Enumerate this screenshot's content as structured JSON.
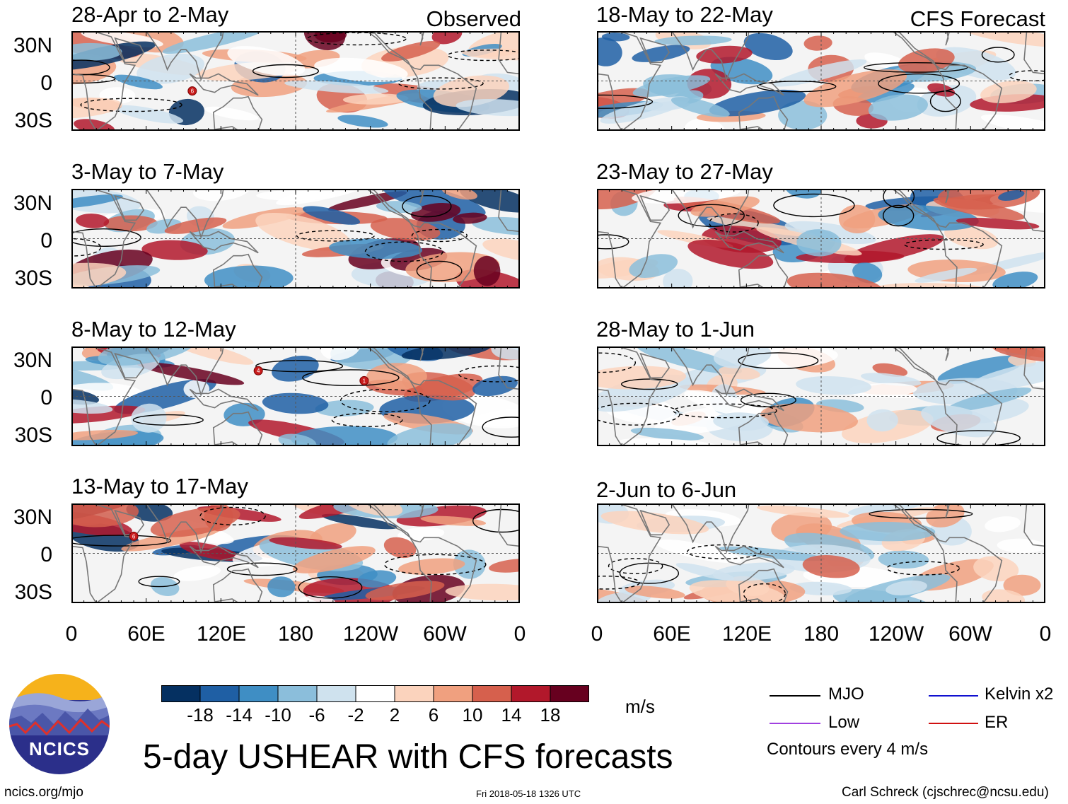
{
  "figure": {
    "title": "5-day USHEAR with CFS forecasts",
    "source_url": "ncics.org/mjo",
    "timestamp": "Fri 2018-05-18 1326 UTC",
    "author": "Carl Schreck (cjschrec@ncsu.edu)",
    "logo_text": "NCICS"
  },
  "columns": {
    "observed_label": "Observed",
    "forecast_label": "CFS Forecast"
  },
  "panels": {
    "observed": [
      {
        "period": "28-Apr to 2-May"
      },
      {
        "period": "3-May to 7-May"
      },
      {
        "period": "8-May to 12-May"
      },
      {
        "period": "13-May to 17-May"
      }
    ],
    "forecast": [
      {
        "period": "18-May to 22-May"
      },
      {
        "period": "23-May to 27-May"
      },
      {
        "period": "28-May to 1-Jun"
      },
      {
        "period": "2-Jun to 6-Jun"
      }
    ]
  },
  "axes": {
    "lat_ticks": [
      "30N",
      "0",
      "30S"
    ],
    "lon_ticks": [
      "0",
      "60E",
      "120E",
      "180",
      "120W",
      "60W",
      "0"
    ]
  },
  "colorbar": {
    "units": "m/s",
    "tick_labels": [
      "-18",
      "-14",
      "-10",
      "-6",
      "-2",
      "2",
      "6",
      "10",
      "14",
      "18"
    ],
    "colors": [
      "#053061",
      "#1f5fa4",
      "#3f8ec4",
      "#8bbedb",
      "#cfe2ee",
      "#ffffff",
      "#fbd3bd",
      "#f0a07f",
      "#d6604d",
      "#b2182b",
      "#67001f"
    ]
  },
  "legend": {
    "items": [
      {
        "label": "MJO",
        "color": "#000000"
      },
      {
        "label": "Kelvin x2",
        "color": "#1010d0"
      },
      {
        "label": "Low",
        "color": "#a040e0"
      },
      {
        "label": "ER",
        "color": "#d01010"
      }
    ],
    "contour_note": "Contours every 4 m/s"
  },
  "storm_markers": [
    {
      "panel": "28-Apr to 2-May",
      "number": "6"
    },
    {
      "panel": "8-May to 12-May",
      "number": "4"
    },
    {
      "panel": "8-May to 12-May",
      "number": "1"
    },
    {
      "panel": "13-May to 17-May",
      "number": "6"
    }
  ]
}
